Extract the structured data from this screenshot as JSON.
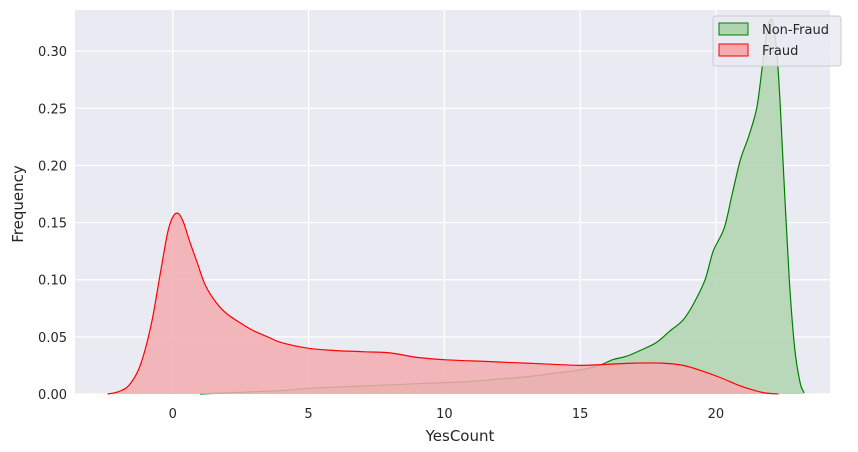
{
  "chart_data": {
    "type": "area",
    "title": "",
    "xlabel": "YesCount",
    "ylabel": "Frequency",
    "xlim": [
      -3.6,
      24.2
    ],
    "ylim": [
      0,
      0.336
    ],
    "xticks": [
      0,
      5,
      10,
      15,
      20
    ],
    "yticks": [
      0.0,
      0.05,
      0.1,
      0.15,
      0.2,
      0.25,
      0.3
    ],
    "grid": true,
    "legend_position": "top-right",
    "series": [
      {
        "name": "Non-Fraud",
        "color": "#008000",
        "fill": "#b0d4af",
        "x": [
          1.0,
          2.0,
          3.0,
          4.0,
          5.0,
          6.0,
          7.0,
          8.0,
          9.0,
          10.0,
          11.0,
          12.0,
          13.0,
          14.0,
          15.0,
          15.7,
          16.2,
          16.7,
          17.2,
          17.8,
          18.3,
          18.8,
          19.2,
          19.6,
          19.9,
          20.3,
          20.6,
          20.9,
          21.2,
          21.5,
          21.7,
          21.9,
          22.1,
          22.3,
          22.5,
          22.7,
          22.9,
          23.1,
          23.25
        ],
        "values": [
          0.0,
          0.001,
          0.002,
          0.003,
          0.005,
          0.006,
          0.007,
          0.008,
          0.009,
          0.01,
          0.011,
          0.013,
          0.015,
          0.018,
          0.021,
          0.025,
          0.03,
          0.033,
          0.038,
          0.045,
          0.055,
          0.065,
          0.08,
          0.1,
          0.125,
          0.145,
          0.175,
          0.205,
          0.225,
          0.25,
          0.285,
          0.32,
          0.325,
          0.28,
          0.19,
          0.1,
          0.04,
          0.01,
          0.001
        ]
      },
      {
        "name": "Fraud",
        "color": "#ff0000",
        "fill": "#f3abb0",
        "x": [
          -2.4,
          -2.0,
          -1.6,
          -1.2,
          -0.8,
          -0.5,
          -0.2,
          0.0,
          0.2,
          0.4,
          0.6,
          0.9,
          1.2,
          1.6,
          2.0,
          2.5,
          3.0,
          3.5,
          4.0,
          5.0,
          6.0,
          7.0,
          8.0,
          9.0,
          10.0,
          11.0,
          12.0,
          13.0,
          14.0,
          15.0,
          16.0,
          17.0,
          18.0,
          18.8,
          19.5,
          20.2,
          20.8,
          21.3,
          21.8,
          22.3
        ],
        "values": [
          0.0,
          0.002,
          0.008,
          0.025,
          0.06,
          0.1,
          0.14,
          0.155,
          0.158,
          0.15,
          0.135,
          0.115,
          0.095,
          0.08,
          0.07,
          0.062,
          0.055,
          0.05,
          0.045,
          0.04,
          0.038,
          0.037,
          0.036,
          0.032,
          0.03,
          0.029,
          0.028,
          0.027,
          0.026,
          0.025,
          0.026,
          0.027,
          0.027,
          0.025,
          0.02,
          0.014,
          0.008,
          0.004,
          0.001,
          0.0
        ]
      }
    ]
  }
}
